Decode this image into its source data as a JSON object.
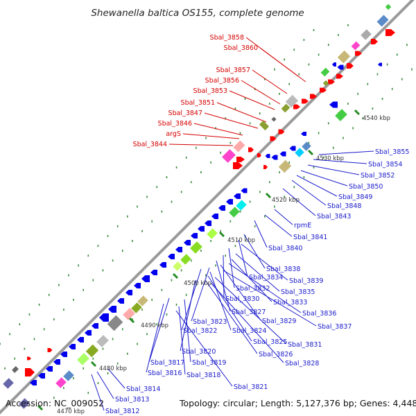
{
  "title": "Shewanella baltica OS155, complete genome",
  "footer": {
    "accession": "Accession: NC_009052",
    "summary": "Topology: circular; Length: 5,127,376 bp; Genes: 4,448"
  },
  "scale_labels": [
    "4470 kbp",
    "4480 kbp",
    "4490 kbp",
    "4500 kbp",
    "4510 kbp",
    "4520 kbp",
    "4530 kbp",
    "4540 kbp"
  ],
  "colors": {
    "backbone": "#9a9a9a",
    "forward_gene": "#ff0000",
    "reverse_gene": "#0000ee",
    "label_forward": "#d40000",
    "label_reverse": "#1a1acc",
    "tick_major": "#228b22",
    "dots": "#3a8a3a"
  },
  "labels_left": [
    "Sbal_3858",
    "Sbal_3860",
    "Sbal_3857",
    "Sbal_3856",
    "Sbal_3853",
    "Sbal_3851",
    "Sbal_3847",
    "Sbal_3846",
    "argS",
    "Sbal_3844"
  ],
  "labels_right": [
    "Sbal_3855",
    "Sbal_3854",
    "Sbal_3852",
    "Sbal_3850",
    "Sbal_3849",
    "Sbal_3848",
    "Sbal_3843",
    "rpmE",
    "Sbal_3841",
    "Sbal_3840",
    "Sbal_3838",
    "Sbal_3834",
    "Sbal_3839",
    "Sbal_3832",
    "Sbal_3835",
    "Sbal_3830",
    "Sbal_3833",
    "Sbal_3836",
    "Sbal_3827",
    "Sbal_3829",
    "Sbal_3837",
    "Sbal_3823",
    "Sbal_3822",
    "Sbal_3824",
    "Sbal_3825",
    "Sbal_3831",
    "Sbal_3826",
    "Sbal_3820",
    "Sbal_3828",
    "Sbal_3817",
    "Sbal_3819",
    "Sbal_3816",
    "Sbal_3818",
    "Sbal_3821",
    "Sbal_3814",
    "Sbal_3813",
    "Sbal_3812"
  ]
}
